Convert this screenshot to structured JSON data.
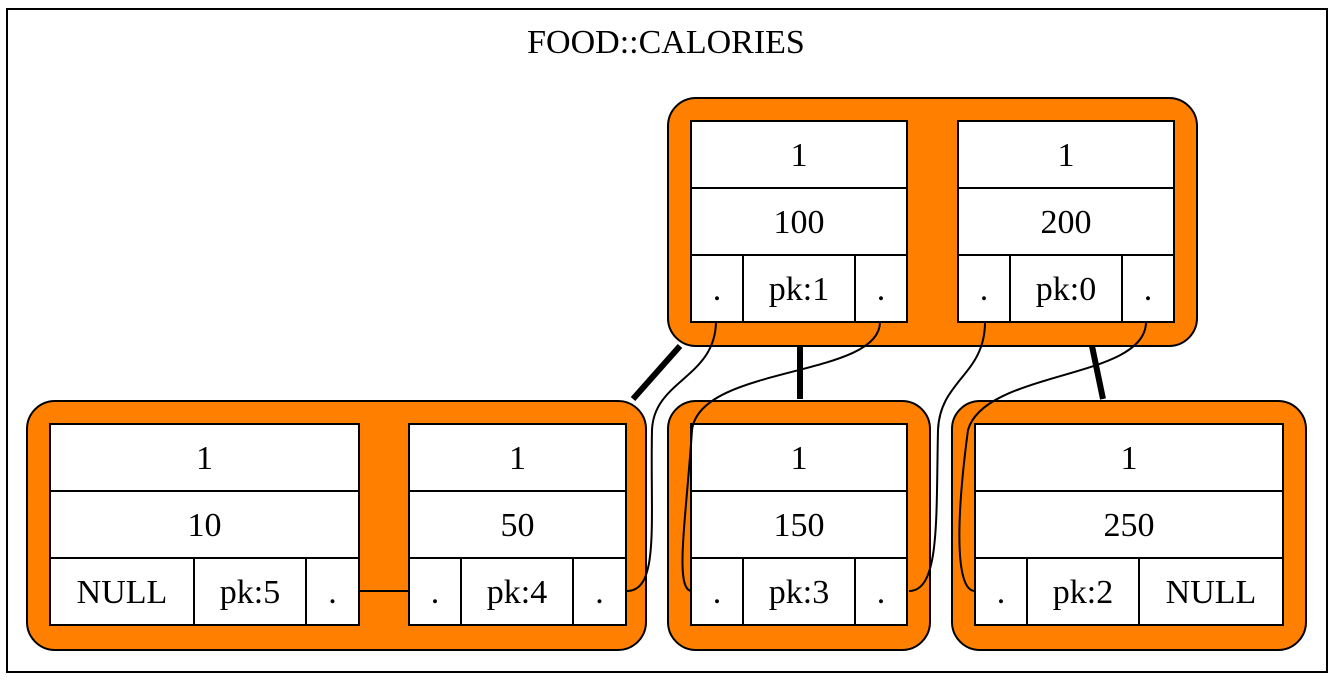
{
  "title": "FOOD::CALORIES",
  "colors": {
    "node_fill": "#ff8000",
    "cell_fill": "#ffffff",
    "stroke": "#000000",
    "background": "#ffffff"
  },
  "nodes": {
    "root": {
      "entries": [
        {
          "count": "1",
          "value": "100",
          "left": ".",
          "pk": "pk:1",
          "right": "."
        },
        {
          "count": "1",
          "value": "200",
          "left": ".",
          "pk": "pk:0",
          "right": "."
        }
      ]
    },
    "leaf1": {
      "entries": [
        {
          "count": "1",
          "value": "10",
          "left": "NULL",
          "pk": "pk:5",
          "right": "."
        },
        {
          "count": "1",
          "value": "50",
          "left": ".",
          "pk": "pk:4",
          "right": "."
        }
      ]
    },
    "leaf2": {
      "entries": [
        {
          "count": "1",
          "value": "150",
          "left": ".",
          "pk": "pk:3",
          "right": "."
        }
      ]
    },
    "leaf3": {
      "entries": [
        {
          "count": "1",
          "value": "250",
          "left": ".",
          "pk": "pk:2",
          "right": "NULL"
        }
      ]
    }
  }
}
